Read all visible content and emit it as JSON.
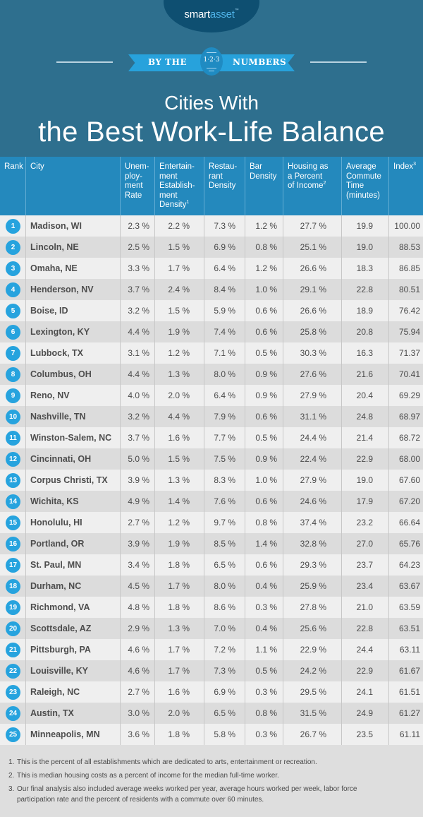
{
  "brand": {
    "logo_smart": "smart",
    "logo_asset": "asset",
    "logo_tm": "™",
    "colors": {
      "hero_bg": "#2e6f8e",
      "logo_oval": "#0e4f71",
      "ribbon": "#27a2dc",
      "table_header": "#2489bd",
      "rank_badge": "#26a3de",
      "row_odd": "#efefef",
      "row_even": "#dcdcdc"
    }
  },
  "banner": {
    "left_text": "BY THE",
    "badge_text": "1·2·3",
    "right_text": "NUMBERS"
  },
  "title": {
    "line1": "Cities With",
    "line2": "the Best Work-Life Balance"
  },
  "table": {
    "columns": [
      {
        "label": "Rank",
        "sup": ""
      },
      {
        "label": "City",
        "sup": ""
      },
      {
        "label": "Unem-ploy-ment Rate",
        "lines": [
          "Unem-",
          "ploy-",
          "ment",
          "Rate"
        ],
        "sup": ""
      },
      {
        "label": "Entertain-ment Establish-ment Density",
        "lines": [
          "Entertain-",
          "ment",
          "Establish-",
          "ment",
          "Density"
        ],
        "sup": "1"
      },
      {
        "label": "Restau-rant Density",
        "lines": [
          "Restau-",
          "rant",
          "Density"
        ],
        "sup": ""
      },
      {
        "label": "Bar Density",
        "lines": [
          "Bar",
          "Density"
        ],
        "sup": ""
      },
      {
        "label": "Housing as a Percent of Income",
        "lines": [
          "Housing as",
          "a Percent",
          "of Income"
        ],
        "sup": "2"
      },
      {
        "label": "Average Commute Time (minutes)",
        "lines": [
          "Average",
          "Commute",
          "Time",
          "(minutes)"
        ],
        "sup": ""
      },
      {
        "label": "Index",
        "lines": [
          "Index"
        ],
        "sup": "3"
      }
    ],
    "rows": [
      {
        "rank": "1",
        "city": "Madison, WI",
        "unemployment": "2.3 %",
        "entertainment": "2.2 %",
        "restaurant": "7.3 %",
        "bar": "1.2 %",
        "housing": "27.7 %",
        "commute": "19.9",
        "index": "100.00"
      },
      {
        "rank": "2",
        "city": "Lincoln, NE",
        "unemployment": "2.5 %",
        "entertainment": "1.5 %",
        "restaurant": "6.9 %",
        "bar": "0.8 %",
        "housing": "25.1 %",
        "commute": "19.0",
        "index": "88.53"
      },
      {
        "rank": "3",
        "city": "Omaha, NE",
        "unemployment": "3.3 %",
        "entertainment": "1.7 %",
        "restaurant": "6.4 %",
        "bar": "1.2 %",
        "housing": "26.6 %",
        "commute": "18.3",
        "index": "86.85"
      },
      {
        "rank": "4",
        "city": "Henderson, NV",
        "unemployment": "3.7 %",
        "entertainment": "2.4 %",
        "restaurant": "8.4 %",
        "bar": "1.0 %",
        "housing": "29.1 %",
        "commute": "22.8",
        "index": "80.51"
      },
      {
        "rank": "5",
        "city": "Boise, ID",
        "unemployment": "3.2 %",
        "entertainment": "1.5 %",
        "restaurant": "5.9 %",
        "bar": "0.6 %",
        "housing": "26.6 %",
        "commute": "18.9",
        "index": "76.42"
      },
      {
        "rank": "6",
        "city": "Lexington, KY",
        "unemployment": "4.4 %",
        "entertainment": "1.9 %",
        "restaurant": "7.4 %",
        "bar": "0.6 %",
        "housing": "25.8 %",
        "commute": "20.8",
        "index": "75.94"
      },
      {
        "rank": "7",
        "city": "Lubbock, TX",
        "unemployment": "3.1 %",
        "entertainment": "1.2 %",
        "restaurant": "7.1 %",
        "bar": "0.5 %",
        "housing": "30.3 %",
        "commute": "16.3",
        "index": "71.37"
      },
      {
        "rank": "8",
        "city": "Columbus, OH",
        "unemployment": "4.4 %",
        "entertainment": "1.3 %",
        "restaurant": "8.0 %",
        "bar": "0.9 %",
        "housing": "27.6 %",
        "commute": "21.6",
        "index": "70.41"
      },
      {
        "rank": "9",
        "city": "Reno, NV",
        "unemployment": "4.0 %",
        "entertainment": "2.0 %",
        "restaurant": "6.4 %",
        "bar": "0.9 %",
        "housing": "27.9 %",
        "commute": "20.4",
        "index": "69.29"
      },
      {
        "rank": "10",
        "city": "Nashville, TN",
        "unemployment": "3.2 %",
        "entertainment": "4.4 %",
        "restaurant": "7.9 %",
        "bar": "0.6 %",
        "housing": "31.1 %",
        "commute": "24.8",
        "index": "68.97"
      },
      {
        "rank": "11",
        "city": "Winston-Salem, NC",
        "unemployment": "3.7 %",
        "entertainment": "1.6 %",
        "restaurant": "7.7 %",
        "bar": "0.5 %",
        "housing": "24.4 %",
        "commute": "21.4",
        "index": "68.72"
      },
      {
        "rank": "12",
        "city": "Cincinnati, OH",
        "unemployment": "5.0 %",
        "entertainment": "1.5 %",
        "restaurant": "7.5 %",
        "bar": "0.9 %",
        "housing": "22.4 %",
        "commute": "22.9",
        "index": "68.00"
      },
      {
        "rank": "13",
        "city": "Corpus Christi, TX",
        "unemployment": "3.9 %",
        "entertainment": "1.3 %",
        "restaurant": "8.3 %",
        "bar": "1.0 %",
        "housing": "27.9 %",
        "commute": "19.0",
        "index": "67.60"
      },
      {
        "rank": "14",
        "city": "Wichita, KS",
        "unemployment": "4.9 %",
        "entertainment": "1.4 %",
        "restaurant": "7.6 %",
        "bar": "0.6 %",
        "housing": "24.6 %",
        "commute": "17.9",
        "index": "67.20"
      },
      {
        "rank": "15",
        "city": "Honolulu, HI",
        "unemployment": "2.7 %",
        "entertainment": "1.2 %",
        "restaurant": "9.7 %",
        "bar": "0.8 %",
        "housing": "37.4 %",
        "commute": "23.2",
        "index": "66.64"
      },
      {
        "rank": "16",
        "city": "Portland, OR",
        "unemployment": "3.9 %",
        "entertainment": "1.9 %",
        "restaurant": "8.5 %",
        "bar": "1.4 %",
        "housing": "32.8 %",
        "commute": "27.0",
        "index": "65.76"
      },
      {
        "rank": "17",
        "city": "St. Paul, MN",
        "unemployment": "3.4 %",
        "entertainment": "1.8 %",
        "restaurant": "6.5 %",
        "bar": "0.6 %",
        "housing": "29.3 %",
        "commute": "23.7",
        "index": "64.23"
      },
      {
        "rank": "18",
        "city": "Durham, NC",
        "unemployment": "4.5 %",
        "entertainment": "1.7 %",
        "restaurant": "8.0 %",
        "bar": "0.4 %",
        "housing": "25.9 %",
        "commute": "23.4",
        "index": "63.67"
      },
      {
        "rank": "19",
        "city": "Richmond, VA",
        "unemployment": "4.8 %",
        "entertainment": "1.8 %",
        "restaurant": "8.6 %",
        "bar": "0.3 %",
        "housing": "27.8 %",
        "commute": "21.0",
        "index": "63.59"
      },
      {
        "rank": "20",
        "city": "Scottsdale, AZ",
        "unemployment": "2.9 %",
        "entertainment": "1.3 %",
        "restaurant": "7.0 %",
        "bar": "0.4 %",
        "housing": "25.6 %",
        "commute": "22.8",
        "index": "63.51"
      },
      {
        "rank": "21",
        "city": "Pittsburgh, PA",
        "unemployment": "4.6 %",
        "entertainment": "1.7 %",
        "restaurant": "7.2 %",
        "bar": "1.1 %",
        "housing": "22.9 %",
        "commute": "24.4",
        "index": "63.11"
      },
      {
        "rank": "22",
        "city": "Louisville, KY",
        "unemployment": "4.6 %",
        "entertainment": "1.7 %",
        "restaurant": "7.3 %",
        "bar": "0.5 %",
        "housing": "24.2 %",
        "commute": "22.9",
        "index": "61.67"
      },
      {
        "rank": "23",
        "city": "Raleigh, NC",
        "unemployment": "2.7 %",
        "entertainment": "1.6 %",
        "restaurant": "6.9 %",
        "bar": "0.3 %",
        "housing": "29.5 %",
        "commute": "24.1",
        "index": "61.51"
      },
      {
        "rank": "24",
        "city": "Austin, TX",
        "unemployment": "3.0 %",
        "entertainment": "2.0 %",
        "restaurant": "6.5 %",
        "bar": "0.8 %",
        "housing": "31.5 %",
        "commute": "24.9",
        "index": "61.27"
      },
      {
        "rank": "25",
        "city": "Minneapolis, MN",
        "unemployment": "3.6 %",
        "entertainment": "1.8 %",
        "restaurant": "5.8 %",
        "bar": "0.3 %",
        "housing": "26.7 %",
        "commute": "23.5",
        "index": "61.11"
      }
    ]
  },
  "footnotes": [
    {
      "n": "1.",
      "text": "This is the percent of all establishments which are dedicated to arts, entertainment or recreation."
    },
    {
      "n": "2.",
      "text": "This is median housing costs as a percent of income for the median full-time worker."
    },
    {
      "n": "3.",
      "text": "Our final analysis also included average weeks worked per year, average hours worked per week, labor force participation rate and the percent of residents with a commute over 60 minutes."
    }
  ]
}
